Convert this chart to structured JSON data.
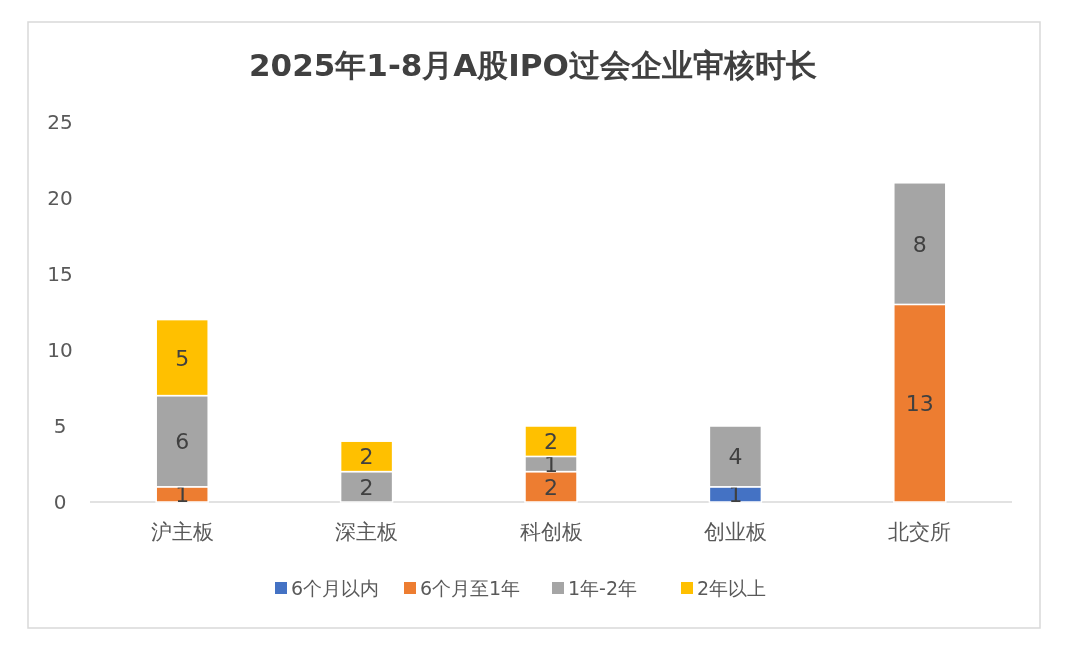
{
  "chart_data": {
    "type": "bar",
    "title": "2025年1-8月A股IPO过会企业审核时长",
    "categories": [
      "沪主板",
      "深主板",
      "科创板",
      "创业板",
      "北交所"
    ],
    "series": [
      {
        "name": "6个月以内",
        "color": "#4472c4",
        "values": [
          null,
          null,
          null,
          1,
          null
        ]
      },
      {
        "name": "6个月至1年",
        "color": "#ed7d31",
        "values": [
          1,
          null,
          2,
          null,
          13
        ]
      },
      {
        "name": "1年-2年",
        "color": "#a5a5a5",
        "values": [
          6,
          2,
          1,
          4,
          8
        ]
      },
      {
        "name": "2年以上",
        "color": "#ffc000",
        "values": [
          5,
          2,
          2,
          null,
          null
        ]
      }
    ],
    "stacked": true,
    "ylim": [
      0,
      25
    ],
    "yticks": [
      0,
      5,
      10,
      15,
      20,
      25
    ],
    "data_labels": true,
    "legend": "bottom"
  }
}
